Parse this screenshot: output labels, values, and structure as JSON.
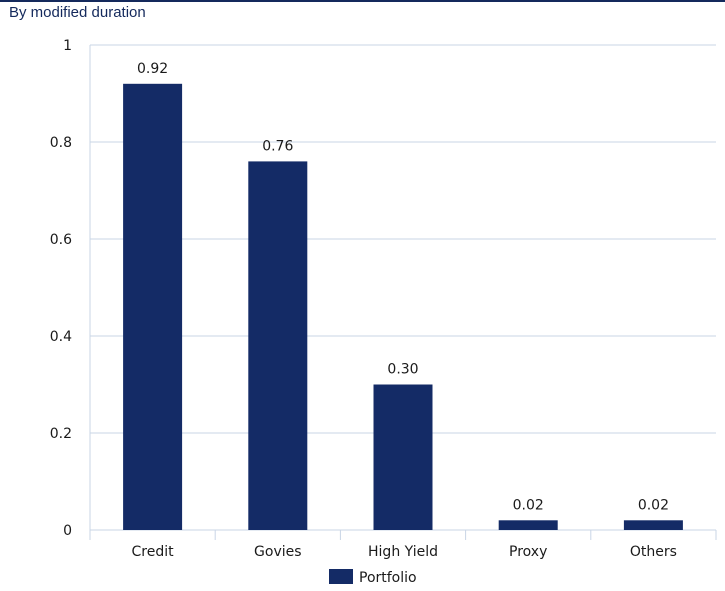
{
  "chart_data": {
    "type": "bar",
    "title": "",
    "subtitle": "By modified duration",
    "xlabel": "",
    "ylabel": "",
    "categories": [
      "Credit",
      "Govies",
      "High Yield",
      "Proxy",
      "Others"
    ],
    "series": [
      {
        "name": "Portfolio",
        "values": [
          0.92,
          0.76,
          0.3,
          0.02,
          0.02
        ],
        "labels": [
          "0.92",
          "0.76",
          "0.30",
          "0.02",
          "0.02"
        ],
        "color": "#142b66"
      }
    ],
    "ylim": [
      0,
      1
    ],
    "yticks": [
      0,
      0.2,
      0.4,
      0.6,
      0.8,
      1
    ],
    "ytick_labels": [
      "0",
      "0.2",
      "0.4",
      "0.6",
      "0.8",
      "1"
    ],
    "grid": true,
    "legend_position": "bottom-center",
    "colors": {
      "bar": "#142b66",
      "grid": "#c9d5e6",
      "axis": "#c9d5e6",
      "accent_rule": "#14295c"
    }
  }
}
